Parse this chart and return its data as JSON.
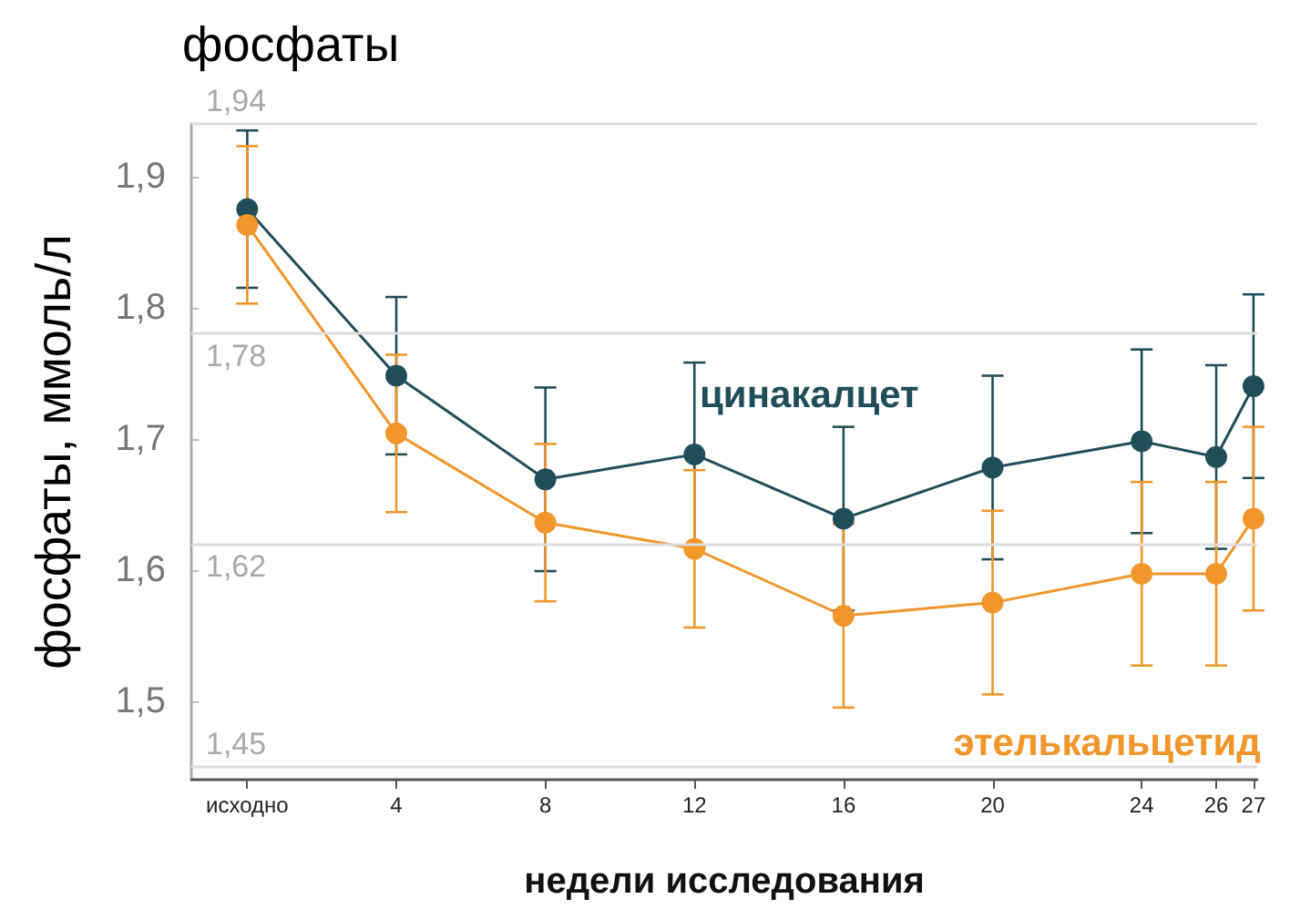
{
  "chart_data": {
    "type": "line",
    "title": "фосфаты",
    "xlabel": "недели исследования",
    "ylabel": "фосфаты, ммоль/л",
    "x": [
      0,
      4,
      8,
      12,
      16,
      20,
      24,
      26,
      27
    ],
    "xlim": [
      -1.5,
      27.1
    ],
    "xticks": [
      {
        "value": 0,
        "label": "исходно"
      },
      4,
      8,
      12,
      16,
      20,
      24,
      26,
      27
    ],
    "ylim": [
      1.44,
      1.94
    ],
    "yticks": [
      {
        "value": 1.5,
        "label": "1,5"
      },
      {
        "value": 1.6,
        "label": "1,6"
      },
      {
        "value": 1.7,
        "label": "1,7"
      },
      {
        "value": 1.8,
        "label": "1,8"
      },
      {
        "value": 1.9,
        "label": "1,9"
      }
    ],
    "series": [
      {
        "name": "цинакалцет",
        "color": "#1f4e5a",
        "values": [
          1.875,
          1.748,
          1.669,
          1.688,
          1.639,
          1.678,
          1.698,
          1.686,
          1.74
        ],
        "errors": [
          0.06,
          0.06,
          0.07,
          0.07,
          0.07,
          0.07,
          0.07,
          0.07,
          0.07
        ]
      },
      {
        "name": "этелькальцетид",
        "color": "#f0962a",
        "values": [
          1.863,
          1.704,
          1.636,
          1.616,
          1.565,
          1.575,
          1.597,
          1.597,
          1.639
        ],
        "errors": [
          0.06,
          0.06,
          0.06,
          0.06,
          0.07,
          0.07,
          0.07,
          0.07,
          0.07
        ]
      }
    ],
    "ref_lines": [
      {
        "axis": "y",
        "value": 1.94,
        "label": "1,94",
        "color": "#dddddd"
      },
      {
        "axis": "y",
        "value": 1.78,
        "label": "1,78",
        "color": "#dddddd"
      },
      {
        "axis": "y",
        "value": 1.62,
        "label": "1,62",
        "color": "#dddddd"
      },
      {
        "axis": "y",
        "value": 1.45,
        "label": "1,45",
        "color": "#dddddd"
      }
    ],
    "marker": "circle",
    "line_style": "solid",
    "grid": false,
    "legend": false
  }
}
